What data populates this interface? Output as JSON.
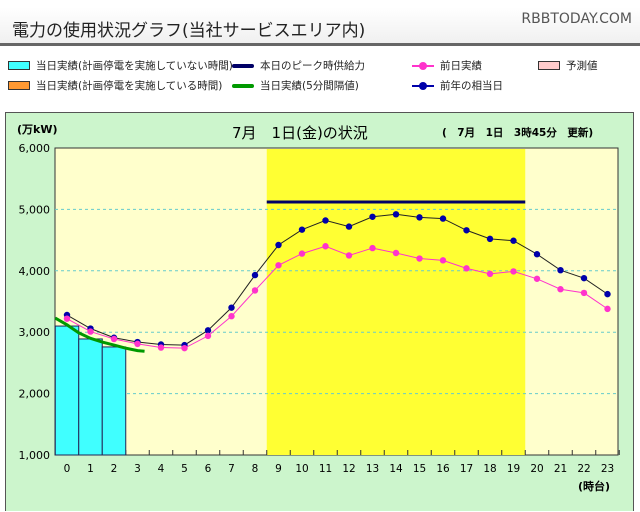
{
  "header": {
    "title": "電力の使用状況グラフ(当社サービスエリア内)",
    "watermark": "RBBTODAY.COM"
  },
  "legend": [
    {
      "label": "当日実績(計画停電を実施していない時間)",
      "kind": "swatch",
      "color": "#40ffff"
    },
    {
      "label": "本日のピーク時供給力",
      "kind": "line",
      "color": "#000066"
    },
    {
      "label": "前日実績",
      "kind": "marker",
      "color": "#ff33cc"
    },
    {
      "label": "予測値",
      "kind": "swatch",
      "color": "#ffcccc"
    },
    {
      "label": "当日実績(計画停電を実施している時間)",
      "kind": "swatch",
      "color": "#ff9933"
    },
    {
      "label": "当日実績(5分間隔値)",
      "kind": "line",
      "color": "#009900"
    },
    {
      "label": "前年の相当日",
      "kind": "marker",
      "color": "#0000aa"
    }
  ],
  "chart_data": {
    "type": "line",
    "title": "7月　1日(金)の状況",
    "update_note": "(　7月　1日　3時45分　更新)",
    "ylabel": "(万kW)",
    "xlabel": "(時台)",
    "ylim": [
      1000,
      6000
    ],
    "yticks": [
      "1,000",
      "2,000",
      "3,000",
      "4,000",
      "5,000",
      "6,000"
    ],
    "categories": [
      "0",
      "1",
      "2",
      "3",
      "4",
      "5",
      "6",
      "7",
      "8",
      "9",
      "10",
      "11",
      "12",
      "13",
      "14",
      "15",
      "16",
      "17",
      "18",
      "19",
      "20",
      "21",
      "22",
      "23"
    ],
    "peak_hours_band": [
      8.5,
      19.5
    ],
    "grid": "dashed horizontal",
    "bars": {
      "name": "当日実績(計画停電を実施していない時間)",
      "values": [
        3100,
        2890,
        2760
      ],
      "color": "#40ffff"
    },
    "peak_supply": {
      "name": "本日のピーク時供給力",
      "value": 5120,
      "from": 8.5,
      "to": 19.5,
      "color": "#000066"
    },
    "five_min": {
      "name": "当日実績(5分間隔値)",
      "x": [
        -0.5,
        0,
        0.5,
        1,
        1.5,
        2,
        2.5,
        3,
        3.3
      ],
      "values": [
        3230,
        3120,
        2990,
        2900,
        2840,
        2790,
        2740,
        2700,
        2690
      ],
      "color": "#009900"
    },
    "series": [
      {
        "name": "前年の相当日",
        "color": "#0000aa",
        "values": [
          3280,
          3060,
          2910,
          2840,
          2800,
          2790,
          3030,
          3400,
          3930,
          4420,
          4670,
          4820,
          4720,
          4880,
          4920,
          4870,
          4850,
          4660,
          4520,
          4490,
          4270,
          4010,
          3880,
          3620
        ]
      },
      {
        "name": "前日実績",
        "color": "#ff33cc",
        "values": [
          3220,
          3010,
          2890,
          2810,
          2750,
          2740,
          2940,
          3260,
          3680,
          4090,
          4280,
          4400,
          4250,
          4370,
          4290,
          4200,
          4170,
          4040,
          3950,
          3990,
          3870,
          3700,
          3640,
          3380
        ]
      }
    ]
  }
}
